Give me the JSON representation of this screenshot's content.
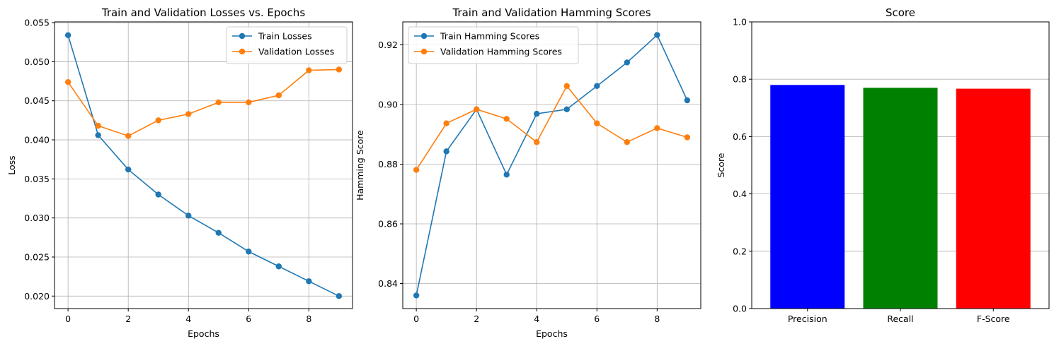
{
  "chart_data": [
    {
      "type": "line",
      "title": "Train and Validation Losses vs. Epochs",
      "xlabel": "Epochs",
      "ylabel": "Loss",
      "x": [
        0,
        1,
        2,
        3,
        4,
        5,
        6,
        7,
        8,
        9
      ],
      "xlim": [
        -0.45,
        9.45
      ],
      "ylim": [
        0.0184,
        0.0551
      ],
      "xticks": [
        0,
        2,
        4,
        6,
        8
      ],
      "xtick_labels": [
        "0",
        "2",
        "4",
        "6",
        "8"
      ],
      "yticks": [
        0.02,
        0.025,
        0.03,
        0.035,
        0.04,
        0.045,
        0.05,
        0.055
      ],
      "ytick_labels": [
        "0.020",
        "0.025",
        "0.030",
        "0.035",
        "0.040",
        "0.045",
        "0.050",
        "0.055"
      ],
      "grid": true,
      "legend_position": "top-right",
      "series": [
        {
          "name": "Train Losses",
          "color": "#1f77b4",
          "values": [
            0.0534,
            0.0406,
            0.0362,
            0.033,
            0.0303,
            0.0281,
            0.0257,
            0.0238,
            0.0219,
            0.02
          ]
        },
        {
          "name": "Validation Losses",
          "color": "#ff7f0e",
          "values": [
            0.0474,
            0.0418,
            0.0405,
            0.0425,
            0.0433,
            0.0448,
            0.0448,
            0.0457,
            0.0489,
            0.049
          ]
        }
      ]
    },
    {
      "type": "line",
      "title": "Train and Validation Hamming Scores",
      "xlabel": "Epochs",
      "ylabel": "Hamming Score",
      "x": [
        0,
        1,
        2,
        3,
        4,
        5,
        6,
        7,
        8,
        9
      ],
      "xlim": [
        -0.45,
        9.45
      ],
      "ylim": [
        0.8316,
        0.9277
      ],
      "xticks": [
        0,
        2,
        4,
        6,
        8
      ],
      "xtick_labels": [
        "0",
        "2",
        "4",
        "6",
        "8"
      ],
      "yticks": [
        0.84,
        0.86,
        0.88,
        0.9,
        0.92
      ],
      "ytick_labels": [
        "0.84",
        "0.86",
        "0.88",
        "0.90",
        "0.92"
      ],
      "grid": true,
      "legend_position": "top-left",
      "series": [
        {
          "name": "Train Hamming Scores",
          "color": "#1f77b4",
          "values": [
            0.836,
            0.8843,
            0.8984,
            0.8765,
            0.8969,
            0.8984,
            0.9062,
            0.9141,
            0.9233,
            0.9014
          ]
        },
        {
          "name": "Validation Hamming Scores",
          "color": "#ff7f0e",
          "values": [
            0.8781,
            0.8937,
            0.8984,
            0.8952,
            0.8874,
            0.9062,
            0.8937,
            0.8874,
            0.8921,
            0.889
          ]
        }
      ]
    },
    {
      "type": "bar",
      "title": "Score",
      "xlabel": "",
      "ylabel": "Score",
      "categories": [
        "Precision",
        "Recall",
        "F-Score"
      ],
      "values": [
        0.78,
        0.77,
        0.767
      ],
      "colors": [
        "#0000ff",
        "#008000",
        "#ff0000"
      ],
      "ylim": [
        0,
        1.0
      ],
      "yticks": [
        0.0,
        0.2,
        0.4,
        0.6,
        0.8,
        1.0
      ],
      "ytick_labels": [
        "0.0",
        "0.2",
        "0.4",
        "0.6",
        "0.8",
        "1.0"
      ],
      "grid": true,
      "grid_axis": "y"
    }
  ]
}
